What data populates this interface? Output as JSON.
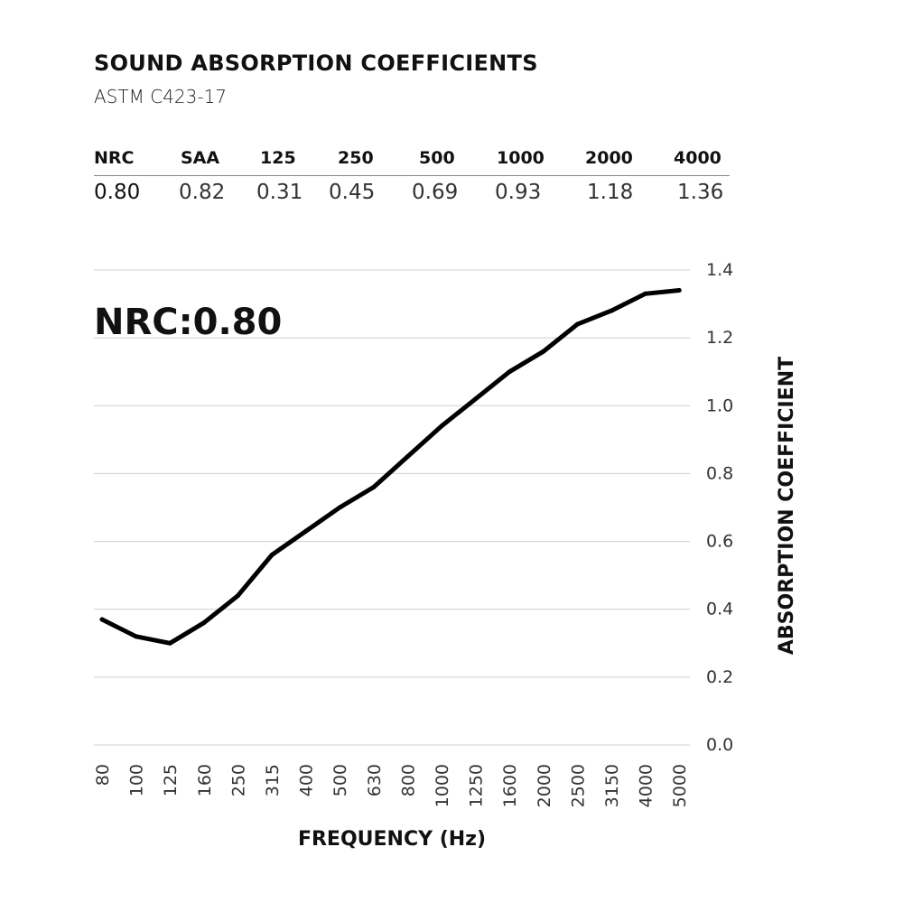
{
  "header": {
    "title": "SOUND ABSORPTION COEFFICIENTS",
    "subtitle": "ASTM C423-17"
  },
  "ratings": {
    "headers": [
      "NRC",
      "SAA",
      "125",
      "250",
      "500",
      "1000",
      "2000",
      "4000"
    ],
    "values": [
      "0.80",
      "0.82",
      "0.31",
      "0.45",
      "0.69",
      "0.93",
      "1.18",
      "1.36"
    ]
  },
  "chart_data": {
    "type": "line",
    "title": "SOUND ABSORPTION COEFFICIENTS",
    "annotation": "NRC:0.80",
    "xlabel": "FREQUENCY (Hz)",
    "ylabel": "ABSORPTION COEFFICIENT",
    "categories": [
      "80",
      "100",
      "125",
      "160",
      "250",
      "315",
      "400",
      "500",
      "630",
      "800",
      "1000",
      "1250",
      "1600",
      "2000",
      "2500",
      "3150",
      "4000",
      "5000"
    ],
    "series": [
      {
        "name": "Absorption coefficient",
        "values": [
          0.37,
          0.32,
          0.3,
          0.36,
          0.44,
          0.56,
          0.63,
          0.7,
          0.76,
          0.85,
          0.94,
          1.02,
          1.1,
          1.16,
          1.24,
          1.28,
          1.33,
          1.34
        ]
      }
    ],
    "yticks": [
      "0.0",
      "0.2",
      "0.4",
      "0.6",
      "0.8",
      "1.0",
      "1.2",
      "1.4"
    ],
    "ylim": [
      0,
      1.4
    ],
    "grid": true,
    "colors": {
      "line": "#000000",
      "grid": "#cfcfcf",
      "text": "#111111"
    }
  }
}
